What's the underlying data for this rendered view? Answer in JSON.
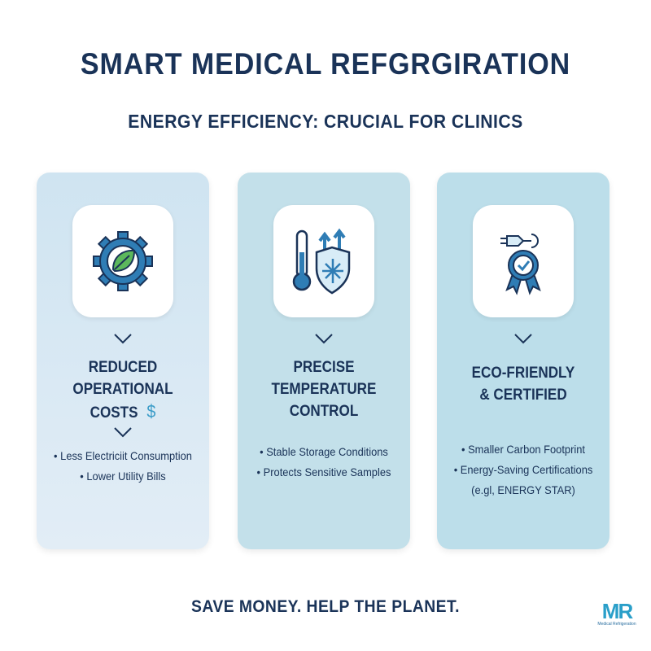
{
  "header": {
    "title": "SMART MEDICAL REFGRGIRATION",
    "subtitle": "ENERGY EFFICIENCY: CRUCIAL FOR CLINICS"
  },
  "cards": [
    {
      "icon": "gear-leaf-icon",
      "title_lines": [
        "REDUCED",
        "OPERATIONAL",
        "COSTS"
      ],
      "title_icon": "$",
      "bullets": [
        "Less Electriciit Consumption",
        "Lower Utility Bills"
      ]
    },
    {
      "icon": "thermometer-snowflake-shield-icon",
      "title_lines": [
        "PRECISE",
        "TEMPERATURE",
        "CONTROL"
      ],
      "bullets": [
        "Stable Storage Conditions",
        "Protects Sensitive Samples"
      ]
    },
    {
      "icon": "plug-award-ribbon-icon",
      "title_lines": [
        "ECO-FRIENDLY",
        "& CERTIFIED"
      ],
      "bullets": [
        "Smaller Carbon Footprint",
        "Energy-Saving Certifications",
        "(e.gl, ENERGY STAR)"
      ]
    }
  ],
  "footer": {
    "tagline": "SAVE MONEY. HELP THE PLANET."
  },
  "logo": {
    "mark": "MR",
    "text": "Medical Refrigeration"
  },
  "colors": {
    "navy": "#1a3358",
    "accent": "#2a9fc9",
    "leaf": "#4caf50"
  }
}
